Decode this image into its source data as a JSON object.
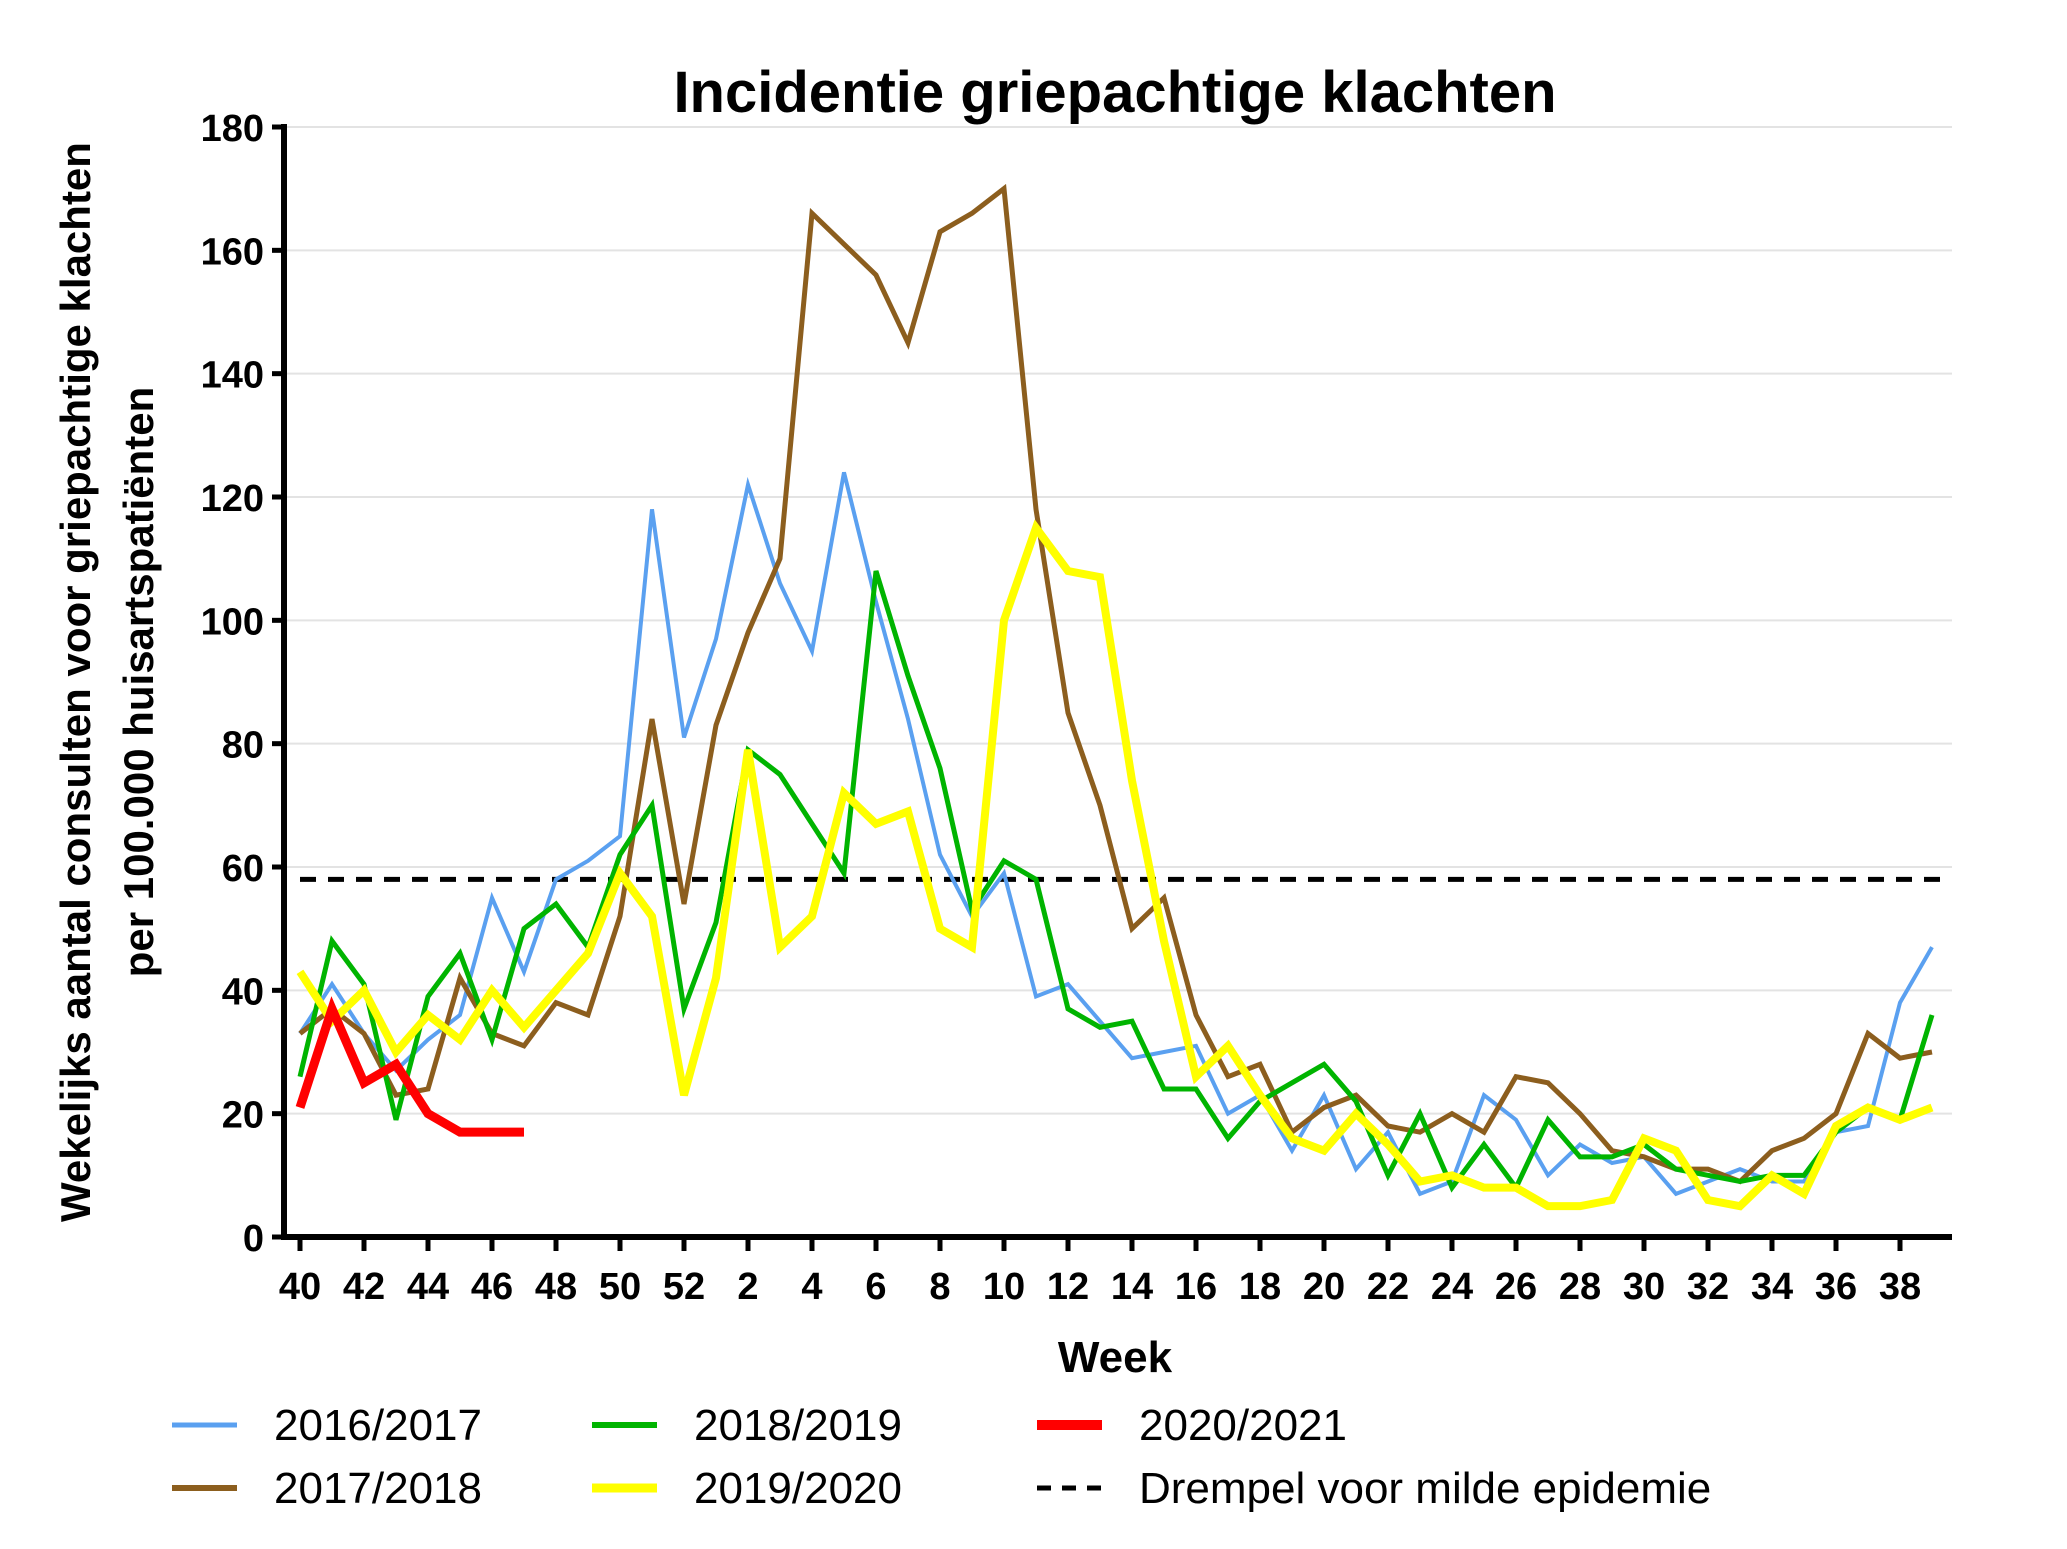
{
  "chart_data": {
    "type": "line",
    "title": "Incidentie griepachtige klachten",
    "xlabel": "Week",
    "ylabel_line1": "Wekelijks aantal consulten voor griepachtige klachten",
    "ylabel_line2": "per 100.000 huisartspatiënten",
    "ylim": [
      0,
      180
    ],
    "yticks": [
      0,
      20,
      40,
      60,
      80,
      100,
      120,
      140,
      160,
      180
    ],
    "grid": true,
    "weeks": [
      40,
      41,
      42,
      43,
      44,
      45,
      46,
      47,
      48,
      49,
      50,
      51,
      52,
      1,
      2,
      3,
      4,
      5,
      6,
      7,
      8,
      9,
      10,
      11,
      12,
      13,
      14,
      15,
      16,
      17,
      18,
      19,
      20,
      21,
      22,
      23,
      24,
      25,
      26,
      27,
      28,
      29,
      30,
      31,
      32,
      33,
      34,
      35,
      36,
      37,
      38,
      39
    ],
    "xtick_labels": [
      "40",
      "42",
      "44",
      "46",
      "48",
      "50",
      "52",
      "2",
      "4",
      "6",
      "8",
      "10",
      "12",
      "14",
      "16",
      "18",
      "20",
      "22",
      "24",
      "26",
      "28",
      "30",
      "32",
      "34",
      "36",
      "38"
    ],
    "series": [
      {
        "name": "2016/2017",
        "color": "#5aa0f0",
        "values": [
          33,
          41,
          33,
          27,
          32,
          36,
          55,
          43,
          58,
          61,
          65,
          118,
          81,
          97,
          122,
          106,
          95,
          124,
          103,
          84,
          62,
          52,
          59,
          39,
          41,
          35,
          29,
          30,
          31,
          20,
          23,
          14,
          23,
          11,
          17,
          7,
          9,
          23,
          19,
          10,
          15,
          12,
          13,
          7,
          9,
          11,
          9,
          9,
          17,
          18,
          38,
          47
        ]
      },
      {
        "name": "2017/2018",
        "color": "#8c5e1e",
        "values": [
          33,
          37,
          33,
          23,
          24,
          42,
          33,
          31,
          38,
          36,
          52,
          84,
          54,
          83,
          98,
          110,
          166,
          161,
          156,
          145,
          163,
          166,
          170,
          118,
          85,
          70,
          50,
          55,
          36,
          26,
          28,
          17,
          21,
          23,
          18,
          17,
          20,
          17,
          26,
          25,
          20,
          14,
          13,
          11,
          11,
          9,
          14,
          16,
          20,
          33,
          29,
          30
        ]
      },
      {
        "name": "2018/2019",
        "color": "#00b400",
        "values": [
          26,
          48,
          41,
          19,
          39,
          46,
          32,
          50,
          54,
          47,
          62,
          70,
          37,
          51,
          79,
          75,
          67,
          59,
          108,
          91,
          76,
          53,
          61,
          58,
          37,
          34,
          35,
          24,
          24,
          16,
          22,
          25,
          28,
          22,
          10,
          20,
          8,
          15,
          8,
          19,
          13,
          13,
          15,
          11,
          10,
          9,
          10,
          10,
          17,
          21,
          19,
          36
        ]
      },
      {
        "name": "2019/2020",
        "color": "#ffff00",
        "values": [
          43,
          35,
          40,
          30,
          36,
          32,
          40,
          34,
          40,
          46,
          59,
          52,
          23,
          42,
          79,
          47,
          52,
          72,
          67,
          69,
          50,
          47,
          100,
          115,
          108,
          107,
          74,
          48,
          26,
          31,
          23,
          16,
          14,
          20,
          15,
          9,
          10,
          8,
          8,
          5,
          5,
          6,
          16,
          14,
          6,
          5,
          10,
          7,
          18,
          21,
          19,
          21
        ]
      },
      {
        "name": "2020/2021",
        "color": "#ff0000",
        "values": [
          21,
          37,
          25,
          28,
          20,
          17,
          17,
          17
        ]
      }
    ],
    "threshold": {
      "name": "Drempel voor milde epidemie",
      "value": 58,
      "color": "#000000"
    },
    "legend_placement": "bottom"
  }
}
